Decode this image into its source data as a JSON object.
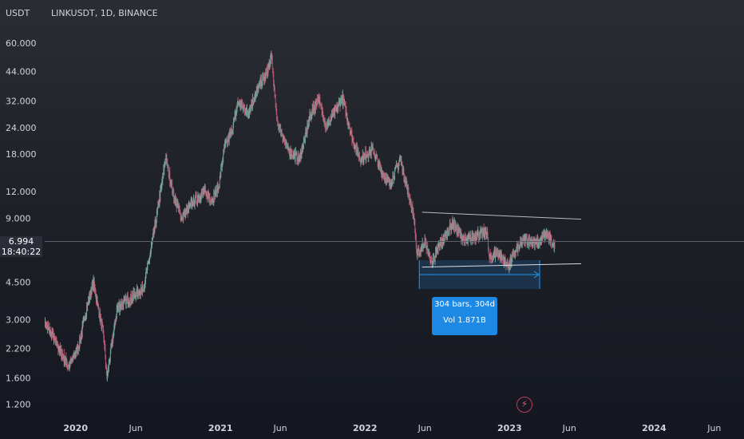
{
  "header": {
    "currency": "USDT",
    "symbol_line": "LINKUSDT, 1D, BINANCE"
  },
  "price_scale": {
    "labels": [
      "60.000",
      "44.000",
      "32.000",
      "24.000",
      "18.000",
      "12.000",
      "9.000",
      "4.500",
      "3.000",
      "2.200",
      "1.600",
      "1.200"
    ],
    "values": [
      60,
      44,
      32,
      24,
      18,
      12,
      9,
      4.5,
      3,
      2.2,
      1.6,
      1.2
    ],
    "current_price": "6.994",
    "countdown": "18:40:22"
  },
  "time_scale": {
    "labels": [
      "2020",
      "Jun",
      "2021",
      "Jun",
      "2022",
      "Jun",
      "2023",
      "Jun",
      "2024",
      "Jun"
    ],
    "dates": [
      "2020-01-01",
      "2020-06-01",
      "2021-01-01",
      "2021-06-01",
      "2022-01-01",
      "2022-06-01",
      "2023-01-01",
      "2023-06-01",
      "2024-01-01",
      "2024-06-01"
    ]
  },
  "measure_tool": {
    "line1": "304 bars, 304d",
    "line2": "Vol 1.871B"
  },
  "colors": {
    "up": "#26a69a",
    "down": "#ef5350",
    "measure": "#2196f3",
    "tooltip_bg": "#1e88e5"
  },
  "chart_data": {
    "type": "line",
    "title": "LINKUSDT, 1D, BINANCE",
    "scale": "log",
    "ylim": [
      1.05,
      75
    ],
    "xlim": [
      "2019-10-15",
      "2024-08-15"
    ],
    "series": [
      {
        "x": [
          "2019-10-15",
          "2019-11-05",
          "2019-11-25",
          "2019-12-15",
          "2020-01-10",
          "2020-02-01",
          "2020-02-15",
          "2020-03-12",
          "2020-03-20",
          "2020-04-15",
          "2020-05-20",
          "2020-06-20",
          "2020-07-05",
          "2020-07-20",
          "2020-08-05",
          "2020-08-15",
          "2020-09-05",
          "2020-09-25",
          "2020-10-20",
          "2020-11-20",
          "2020-12-10",
          "2020-12-27",
          "2021-01-10",
          "2021-02-01",
          "2021-02-15",
          "2021-03-10",
          "2021-04-10",
          "2021-04-30",
          "2021-05-10",
          "2021-05-23",
          "2021-06-20",
          "2021-07-20",
          "2021-08-15",
          "2021-09-05",
          "2021-09-25",
          "2021-11-05",
          "2021-12-01",
          "2021-12-20",
          "2022-01-20",
          "2022-02-10",
          "2022-03-05",
          "2022-03-31",
          "2022-04-15",
          "2022-05-05",
          "2022-05-12",
          "2022-06-01",
          "2022-06-18",
          "2022-07-10",
          "2022-08-10",
          "2022-09-10",
          "2022-10-10",
          "2022-11-05",
          "2022-11-10",
          "2022-12-01",
          "2022-12-30",
          "2023-01-20",
          "2023-02-10",
          "2023-03-10",
          "2023-04-05",
          "2023-04-25"
        ],
        "values": [
          2.9,
          2.5,
          2.1,
          1.8,
          2.3,
          3.6,
          4.5,
          2.5,
          1.6,
          3.4,
          3.8,
          4.2,
          5.8,
          8.3,
          12.8,
          17.5,
          11.4,
          9.0,
          10.5,
          12.0,
          11.0,
          12.5,
          19.0,
          24.0,
          32.0,
          28.0,
          38.0,
          44.0,
          52.0,
          26.0,
          19.0,
          17.0,
          27.0,
          33.0,
          24.0,
          33.0,
          21.0,
          17.0,
          19.0,
          15.0,
          13.0,
          17.0,
          13.0,
          9.0,
          6.0,
          7.0,
          5.5,
          6.8,
          8.5,
          7.0,
          7.5,
          7.8,
          5.8,
          6.2,
          5.4,
          6.5,
          7.2,
          6.8,
          7.6,
          6.5
        ]
      }
    ],
    "annotations": {
      "upper_trendline": {
        "start": [
          "2022-05-25",
          9.6
        ],
        "end": [
          "2023-07-01",
          8.9
        ]
      },
      "lower_trendline": {
        "start": [
          "2022-05-25",
          5.3
        ],
        "end": [
          "2023-07-01",
          5.5
        ]
      },
      "measure_range": {
        "start": "2022-05-18",
        "end": "2023-03-18"
      },
      "current_price": 6.994
    }
  }
}
